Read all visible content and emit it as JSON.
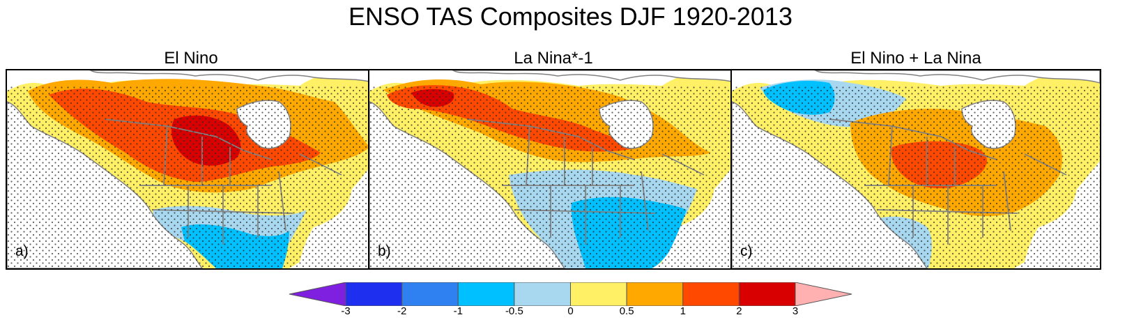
{
  "title": "ENSO TAS Composites DJF 1920-2013",
  "panels": [
    {
      "id": "a",
      "title": "El Nino",
      "letter": "a)",
      "levels": {
        "bg": "yellow",
        "b1": "orange",
        "b2": "orange-red",
        "b3": "red",
        "s1": "light-blue",
        "s2": "sky-blue"
      }
    },
    {
      "id": "b",
      "title": "La Nina*-1",
      "letter": "b)",
      "levels": {
        "bg": "yellow",
        "b1": "orange",
        "b2": "orange-red",
        "b3": "red",
        "s1": "light-blue",
        "s2": "sky-blue"
      }
    },
    {
      "id": "c",
      "title": "El Nino + La Nina",
      "letter": "c)",
      "levels": {
        "bg": "yellow",
        "b1": "orange",
        "b2": "orange-red",
        "b3": "orange-red",
        "s1": "light-blue",
        "s2": "sky-blue"
      }
    }
  ],
  "colorbar": {
    "ticks": [
      "-3",
      "-2",
      "-1",
      "-0.5",
      "0",
      "0.5",
      "1",
      "2",
      "3"
    ],
    "colors": {
      "below": "#7f1fdf",
      "bins": [
        "#1f2fef",
        "#2f80f0",
        "#00c0ff",
        "#a8d8f0",
        "#fff066",
        "#ffa800",
        "#ff4800",
        "#d80000"
      ],
      "above": "#ffb0b0"
    }
  },
  "palette": {
    "yellow": "#fff066",
    "orange": "#ffa800",
    "orange-red": "#ff4800",
    "red": "#d80000",
    "light-blue": "#a8d8f0",
    "sky-blue": "#00c0ff",
    "land-line": "#808080",
    "stipple": "#2a2a2a"
  }
}
